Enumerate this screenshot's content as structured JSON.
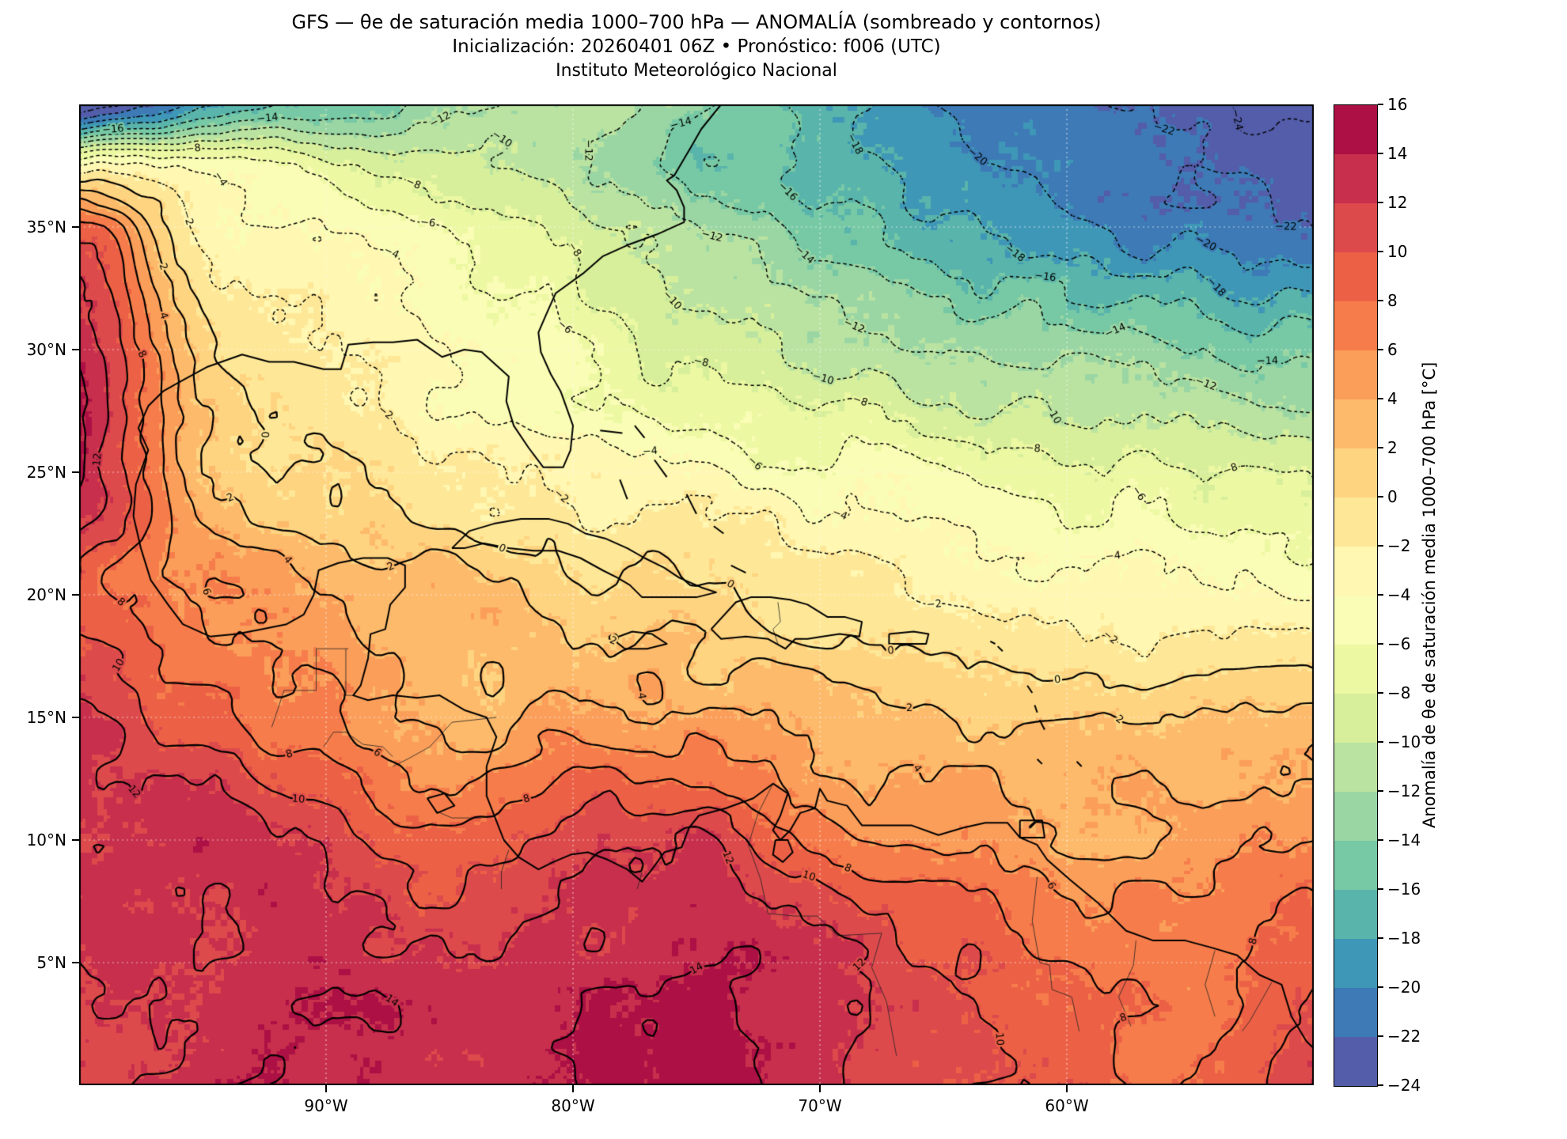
{
  "title": {
    "line1": "GFS — θe de saturación media 1000–700 hPa — ANOMALÍA (sombreado y contornos)",
    "line2": "Inicialización: 20260401 06Z   •   Pronóstico: f006 (UTC)",
    "line3": "Instituto Meteorológico Nacional"
  },
  "axes": {
    "x_tick_labels": [
      "90°W",
      "80°W",
      "70°W",
      "60°W"
    ],
    "x_tick_lons": [
      -90,
      -80,
      -70,
      -60
    ],
    "y_tick_labels": [
      "35°N",
      "30°N",
      "25°N",
      "20°N",
      "15°N",
      "10°N",
      "5°N"
    ],
    "y_tick_lats": [
      35,
      30,
      25,
      20,
      15,
      10,
      5
    ]
  },
  "colorbar": {
    "label": "Anomalía de θe de saturación media 1000–700 hPa [°C]",
    "vmin": -24,
    "vmax": 16,
    "band_step": 2,
    "tick_values": [
      16,
      14,
      12,
      10,
      8,
      6,
      4,
      2,
      0,
      -2,
      -4,
      -6,
      -8,
      -10,
      -12,
      -14,
      -16,
      -18,
      -20,
      -22,
      -24
    ],
    "tick_labels": [
      "16",
      "14",
      "12",
      "10",
      "8",
      "6",
      "4",
      "2",
      "0",
      "−2",
      "−4",
      "−6",
      "−8",
      "−10",
      "−12",
      "−14",
      "−16",
      "−18",
      "−20",
      "−22",
      "−24"
    ],
    "colormap_name": "Spectral_r",
    "colormap_stops": [
      "#9e0142",
      "#d53e4f",
      "#f46d43",
      "#fdae61",
      "#fee08b",
      "#ffffbf",
      "#e6f598",
      "#abdda4",
      "#66c2a5",
      "#3288bd",
      "#5e4fa2"
    ]
  },
  "chart_data": {
    "type": "heatmap",
    "title": "GFS — θe de saturación media 1000–700 hPa — ANOMALÍA (sombreado y contornos)",
    "subtitle": "Inicialización: 20260401 06Z  •  Pronóstico: f006 (UTC)",
    "institution": "Instituto Meteorológico Nacional",
    "units": "°C",
    "lon_range": [
      -100,
      -50
    ],
    "lat_range": [
      0,
      40
    ],
    "contour_interval": 2,
    "contour_levels": [
      -24,
      -22,
      -20,
      -18,
      -16,
      -14,
      -12,
      -10,
      -8,
      -6,
      -4,
      -2,
      0,
      2,
      4,
      6,
      8,
      10,
      12,
      14
    ],
    "negative_contour_style": "dotted",
    "positive_contour_style": "solid",
    "grid_lons": [
      -100,
      -95,
      -90,
      -85,
      -80,
      -75,
      -70,
      -65,
      -60,
      -55,
      -50
    ],
    "grid_lats": [
      40,
      37.5,
      35,
      30,
      25,
      20,
      15,
      10,
      5,
      0
    ],
    "anomaly_grid": [
      [
        -26,
        -19,
        -15,
        -13,
        -11,
        -14,
        -17,
        -20,
        -22,
        -23,
        -25
      ],
      [
        -3,
        -4,
        -7,
        -9,
        -12,
        -15,
        -17,
        -19,
        -21,
        -22,
        -23
      ],
      [
        9,
        -2,
        -4,
        -6,
        -9,
        -12,
        -15,
        -17,
        -19,
        -21,
        -22
      ],
      [
        13,
        1,
        -2,
        -4,
        -6,
        -9,
        -11,
        -12,
        -13,
        -14,
        -15
      ],
      [
        14,
        3,
        0,
        -2,
        -3,
        -4,
        -5,
        -6,
        -7,
        -8,
        -9
      ],
      [
        9,
        6,
        4,
        3,
        1,
        0,
        -1,
        -2,
        -3,
        -4,
        -4
      ],
      [
        12,
        9,
        6,
        3,
        5,
        4,
        3,
        2,
        2,
        2,
        3
      ],
      [
        13,
        13,
        11,
        8,
        11,
        12,
        7,
        6,
        4,
        5,
        6
      ],
      [
        12,
        12,
        13,
        12,
        13,
        14,
        13,
        10,
        8,
        7,
        9
      ],
      [
        12,
        13,
        14,
        13,
        14,
        15,
        13,
        11,
        9,
        8,
        11
      ]
    ],
    "render": {
      "noise_seed": 11,
      "speckle_cell_deg": 0.25
    }
  },
  "map": {
    "coastlines": [
      [
        -74,
        40,
        -74.8,
        39,
        -75.2,
        38.3,
        -75.9,
        37.1,
        -76.2,
        36.9,
        -75.8,
        36.5,
        -75.5,
        35.8,
        -75.5,
        35.2,
        -76.6,
        34.7,
        -77.7,
        34.3,
        -78.8,
        33.8,
        -79.6,
        33.1,
        -80.7,
        32.3,
        -81.1,
        31.4,
        -81.4,
        30.7,
        -81.3,
        29.9,
        -80.9,
        29,
        -80.5,
        28.3,
        -80,
        26.9,
        -80.1,
        25.9,
        -80.4,
        25.2,
        -81.2,
        25.2,
        -81.8,
        26,
        -82.4,
        26.9,
        -82.7,
        27.9,
        -82.6,
        28.9,
        -83.7,
        29.9,
        -84.4,
        30,
        -85.3,
        29.7,
        -86.3,
        30.4,
        -87.3,
        30.3,
        -88.1,
        30.3,
        -89.1,
        30.2,
        -89.4,
        29.2,
        -90.1,
        29.2,
        -91.3,
        29.5,
        -92.3,
        29.5,
        -93.4,
        29.8,
        -94.8,
        29.3,
        -95.9,
        28.7,
        -96.6,
        28.3,
        -97.2,
        27.7,
        -97.6,
        26.8,
        -97.2,
        25.9,
        -97.7,
        24.5,
        -97.8,
        23.2,
        -97.5,
        21.9,
        -97.1,
        20.6,
        -96.4,
        19.6,
        -95.8,
        18.8,
        -94.7,
        18.3,
        -93.6,
        18.4,
        -92.6,
        18.6,
        -91.6,
        18.8,
        -90.9,
        19.2,
        -90.5,
        20,
        -90.3,
        21,
        -89.5,
        21.3,
        -88.5,
        21.5,
        -87.5,
        21.5,
        -86.8,
        21.2,
        -86.8,
        20.3,
        -87.4,
        19.6,
        -87.6,
        18.6,
        -88.2,
        18.4,
        -88.3,
        17.4,
        -88.6,
        16.3,
        -88.9,
        15.9,
        -88.3,
        15.7,
        -87.3,
        15.9,
        -86.3,
        15.8,
        -85.4,
        15.9,
        -84.4,
        15.3,
        -83.5,
        15,
        -83.1,
        14.2,
        -83.5,
        13,
        -83.5,
        11.8,
        -82.8,
        10,
        -82.2,
        9.3,
        -81.4,
        8.8,
        -80.8,
        9.1,
        -80.1,
        9.4,
        -79.4,
        9.5,
        -78.6,
        9.2,
        -77.8,
        8.8,
        -77.2,
        8.3,
        -76.8,
        8.8,
        -76.3,
        9.5,
        -75.6,
        9.7,
        -75.3,
        10.5,
        -74.9,
        11,
        -73.8,
        11.3,
        -72.7,
        11.7,
        -71.9,
        12.3,
        -71.3,
        11.9,
        -71.6,
        11,
        -71.9,
        10.4,
        -71.6,
        10,
        -71.2,
        10.4,
        -70.8,
        11.1,
        -70.2,
        11.3,
        -70,
        12.1,
        -69.7,
        11.6,
        -68.9,
        11.4,
        -68.3,
        10.6,
        -67.5,
        10.6,
        -66.3,
        10.6,
        -65.2,
        10.2,
        -64.2,
        10.5,
        -63.3,
        10.7,
        -62.4,
        10.7,
        -61.9,
        10.1,
        -61.2,
        9.8,
        -60.8,
        9.2,
        -59.9,
        8.4,
        -58.7,
        7.4,
        -57.6,
        6.3,
        -56.5,
        5.9,
        -55.2,
        5.9,
        -54.1,
        5.6,
        -53.1,
        5.3,
        -52.2,
        4.5,
        -51.3,
        4.1,
        -50.9,
        2.8,
        -50.3,
        1.8,
        -50,
        1.5
      ],
      [
        -84.9,
        21.9,
        -84.2,
        22.6,
        -83.2,
        22.9,
        -82.1,
        23.1,
        -81,
        23.1,
        -80.2,
        22.9,
        -79.5,
        22.5,
        -78.7,
        22.3,
        -77.8,
        21.9,
        -77.1,
        21.5,
        -76.3,
        21.1,
        -75.7,
        20.7,
        -74.8,
        20.3,
        -74.2,
        20.1,
        -75,
        19.9,
        -76,
        19.9,
        -77.2,
        19.9,
        -77.7,
        20.4,
        -78.2,
        20.7,
        -78.8,
        21,
        -79.7,
        21.5,
        -80.6,
        21.8,
        -81.6,
        21.8,
        -82.6,
        21.9,
        -83.6,
        22.1,
        -84.4,
        21.9,
        -84.9,
        21.9
      ],
      [
        -74.4,
        18.6,
        -74,
        18.2,
        -73,
        18.3,
        -72.1,
        18.2,
        -71.4,
        17.8,
        -71,
        18.2,
        -70.5,
        18.2,
        -69.9,
        18.3,
        -69.2,
        18.4,
        -68.4,
        18.3,
        -68.3,
        18.9,
        -69,
        19.1,
        -69.7,
        19.1,
        -70.5,
        19.6,
        -71.2,
        19.8,
        -72,
        19.9,
        -72.8,
        19.9,
        -73.4,
        19.7,
        -74.4,
        18.6
      ],
      [
        -78.4,
        18.2,
        -77.6,
        18.5,
        -76.8,
        18.4,
        -76.2,
        18,
        -77,
        17.8,
        -77.9,
        17.8,
        -78.4,
        18.2
      ],
      [
        -67.2,
        18.4,
        -66.2,
        18.5,
        -65.6,
        18.4,
        -65.7,
        18,
        -66.8,
        18,
        -67.2,
        18,
        -67.2,
        18.4
      ],
      [
        -61.9,
        10.8,
        -61,
        10.8,
        -60.9,
        10.1,
        -61.9,
        10.1,
        -61.9,
        10.8
      ],
      [
        -78.9,
        26.7,
        -78,
        26.6
      ],
      [
        -77.5,
        26.9,
        -77.1,
        26.4
      ],
      [
        -78.1,
        24.7,
        -77.8,
        23.9
      ],
      [
        -76.7,
        25.5,
        -76.2,
        24.8
      ],
      [
        -75.4,
        24.1,
        -75,
        23.3
      ],
      [
        -73.6,
        21.2,
        -73,
        20.9
      ],
      [
        -74.3,
        22.8,
        -73.9,
        22.5
      ],
      [
        -61.6,
        16.3,
        -61.4,
        16
      ],
      [
        -61.3,
        15.5,
        -61.2,
        15.2
      ],
      [
        -61.1,
        14.9,
        -60.9,
        14.5
      ],
      [
        -61.2,
        13.3,
        -61,
        13.1
      ],
      [
        -59.6,
        13.2,
        -59.4,
        13
      ],
      [
        -62.8,
        17.9,
        -62.6,
        17.7
      ],
      [
        -63.1,
        18.1,
        -62.9,
        18
      ],
      [
        -85.9,
        11.7,
        -85.2,
        11.9,
        -84.8,
        11.4,
        -85.5,
        11.1,
        -85.9,
        11.7
      ],
      [
        -71.8,
        10,
        -71.3,
        10,
        -71.1,
        9.5,
        -71.5,
        9.1,
        -71.9,
        9.4,
        -71.8,
        10
      ]
    ],
    "borders": [
      [
        -92.2,
        14.6,
        -91.7,
        16.1,
        -90.4,
        16.1,
        -90.4,
        17.8,
        -89.1,
        17.8
      ],
      [
        -89.2,
        17.8,
        -89.2,
        15.9,
        -88.9,
        15.9
      ],
      [
        -89.2,
        14.4,
        -89.7,
        14.4,
        -90.1,
        13.8
      ],
      [
        -89.2,
        14.4,
        -88.5,
        13.9,
        -87.7,
        13.8,
        -87.3,
        13.4
      ],
      [
        -83.1,
        15,
        -84.9,
        14.8,
        -85.8,
        13.8,
        -86.7,
        13.3,
        -87.3,
        13
      ],
      [
        -83.7,
        10.9,
        -84.9,
        10.9,
        -85.6,
        11.2
      ],
      [
        -82.6,
        9.6,
        -82.9,
        8.7,
        -82.9,
        8
      ],
      [
        -77.2,
        8.7,
        -77.4,
        8
      ],
      [
        -71.9,
        12.3,
        -72.5,
        11.1,
        -72.9,
        9.8,
        -72.4,
        8.4,
        -72.1,
        7,
        -71,
        6.9,
        -70.1,
        6.9,
        -69.3,
        6.1,
        -67.5,
        6.2,
        -67.9,
        4.8,
        -67.3,
        3.4,
        -66.9,
        1.2
      ],
      [
        -61.2,
        8.5,
        -61.4,
        6.7,
        -61.1,
        5,
        -60.7,
        4.9,
        -60.6,
        3.9,
        -59.8,
        3.6,
        -59.5,
        2.2
      ],
      [
        -57.2,
        5.9,
        -57.3,
        4.9,
        -57.9,
        3.6,
        -57.4,
        2.4
      ],
      [
        -54,
        5.5,
        -54.4,
        4.1,
        -54,
        2.8
      ],
      [
        -51.7,
        4.2,
        -52.6,
        2.6,
        -52.9,
        2.2
      ],
      [
        -71.7,
        19.7,
        -71.6,
        18.9,
        -71.9,
        18.6,
        -71.7,
        18
      ]
    ]
  }
}
